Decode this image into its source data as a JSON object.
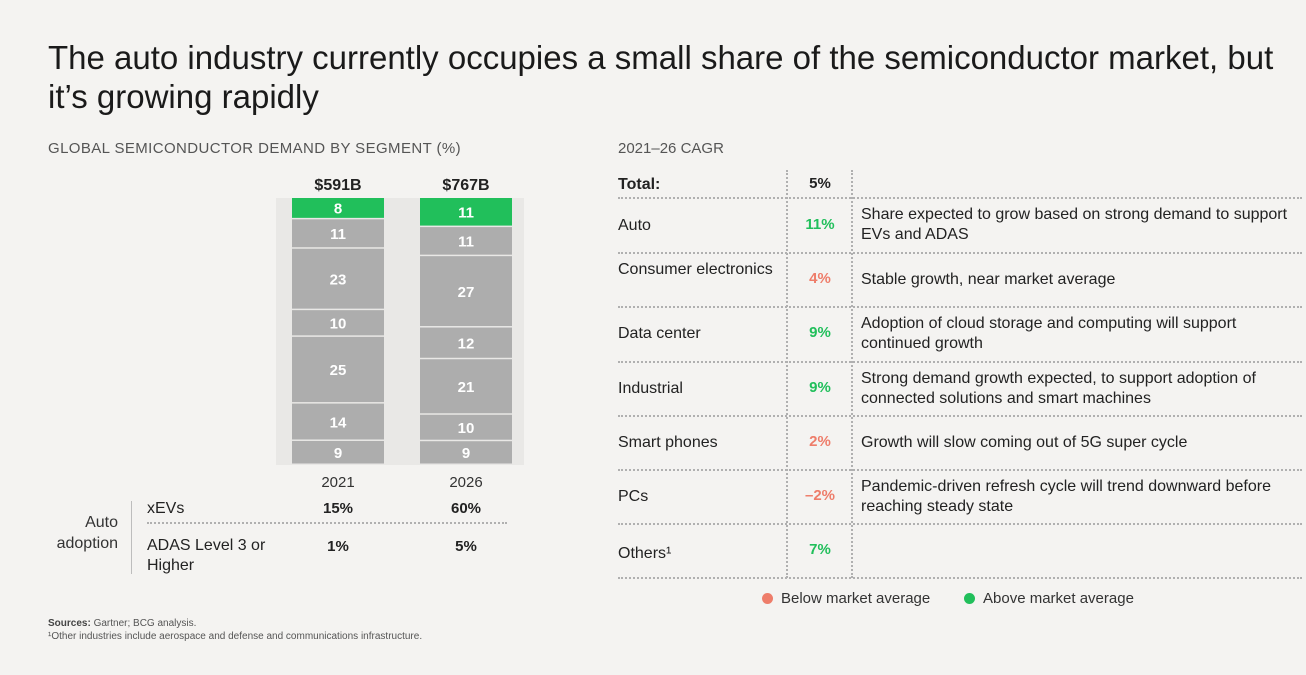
{
  "title": "The auto industry currently occupies a small share of the semiconductor market, but it’s growing rapidly",
  "left_heading": "GLOBAL SEMICONDUCTOR DEMAND BY SEGMENT (%)",
  "right_heading": "2021–26 CAGR",
  "colors": {
    "gray_segment": "#adadad",
    "auto_segment": "#21bf5b",
    "below_average": "#ee7d6a",
    "above_average": "#21bf5b",
    "background": "#f4f3f1"
  },
  "chart_data": {
    "type": "bar",
    "stacked": true,
    "categories": [
      "2021",
      "2026"
    ],
    "totals": [
      "$591B",
      "$767B"
    ],
    "segments": [
      {
        "name": "Auto",
        "values": [
          8,
          11
        ],
        "color": "#21bf5b"
      },
      {
        "name": "Consumer electronics",
        "values": [
          11,
          11
        ],
        "color": "#adadad"
      },
      {
        "name": "Data center",
        "values": [
          23,
          27
        ],
        "color": "#adadad"
      },
      {
        "name": "Industrial",
        "values": [
          10,
          12
        ],
        "color": "#adadad"
      },
      {
        "name": "Smart phones",
        "values": [
          25,
          21
        ],
        "color": "#adadad"
      },
      {
        "name": "PCs",
        "values": [
          14,
          10
        ],
        "color": "#adadad"
      },
      {
        "name": "Others",
        "values": [
          9,
          9
        ],
        "color": "#adadad"
      }
    ]
  },
  "auto_adoption": {
    "heading": "Auto adoption",
    "rows": [
      {
        "label": "xEVs",
        "values": [
          "15%",
          "60%"
        ]
      },
      {
        "label": "ADAS Level 3 or Higher",
        "values": [
          "1%",
          "5%"
        ]
      }
    ]
  },
  "cagr_table": {
    "total": {
      "label": "Total:",
      "value": "5%"
    },
    "rows": [
      {
        "segment": "Auto",
        "cagr": "11%",
        "status": "above",
        "description": "Share expected to grow based on strong demand to support EVs and ADAS"
      },
      {
        "segment": "Consumer electronics",
        "cagr": "4%",
        "status": "below",
        "description": "Stable growth, near market average"
      },
      {
        "segment": "Data center",
        "cagr": "9%",
        "status": "above",
        "description": "Adoption of cloud storage and computing will support continued growth"
      },
      {
        "segment": "Industrial",
        "cagr": "9%",
        "status": "above",
        "description": "Strong demand growth expected, to support adoption of connected solutions and smart machines"
      },
      {
        "segment": "Smart phones",
        "cagr": "2%",
        "status": "below",
        "description": "Growth will slow coming out of 5G super cycle"
      },
      {
        "segment": "PCs",
        "cagr": "–2%",
        "status": "below",
        "description": "Pandemic-driven refresh cycle will trend downward before reaching steady state"
      },
      {
        "segment": "Others¹",
        "cagr": "7%",
        "status": "above",
        "description": ""
      }
    ]
  },
  "legend": {
    "below": "Below market average",
    "above": "Above market average"
  },
  "sources": {
    "label": "Sources:",
    "text": "Gartner; BCG analysis.",
    "footnote": "¹Other industries include aerospace and defense and communications infrastructure."
  }
}
